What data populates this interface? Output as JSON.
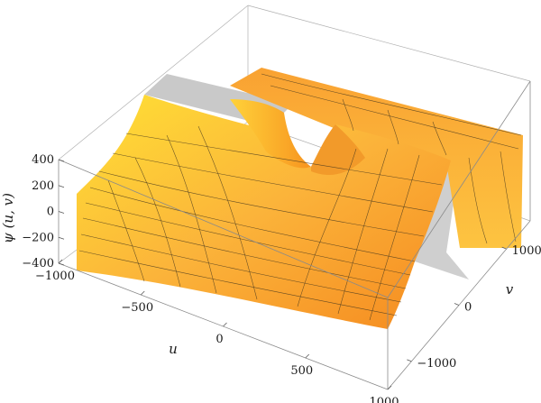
{
  "chart_data": {
    "type": "surface3d",
    "title": "",
    "axes": {
      "x": {
        "label": "u",
        "range": [
          -1000,
          1000
        ],
        "ticks": [
          -1000,
          -500,
          0,
          500,
          1000
        ]
      },
      "y": {
        "label": "v",
        "range": [
          -1500,
          1500
        ],
        "ticks": [
          -1000,
          0,
          1000
        ]
      },
      "z": {
        "label": "ψ (u, v)",
        "range": [
          -400,
          400
        ],
        "ticks": [
          -400,
          -200,
          0,
          200,
          400
        ]
      }
    },
    "surface": {
      "description_function": "saddle-like surface with sharp ridge near origin",
      "z_at_corners": {
        "u_min_v_min": 120,
        "u_min_v_max": 350,
        "u_max_v_min": -250,
        "u_max_v_max": 300
      },
      "ridge_peak": 400,
      "colormap": [
        "#f58a1f",
        "#fbb33a",
        "#ffe135"
      ]
    },
    "grid": false,
    "box": true
  }
}
